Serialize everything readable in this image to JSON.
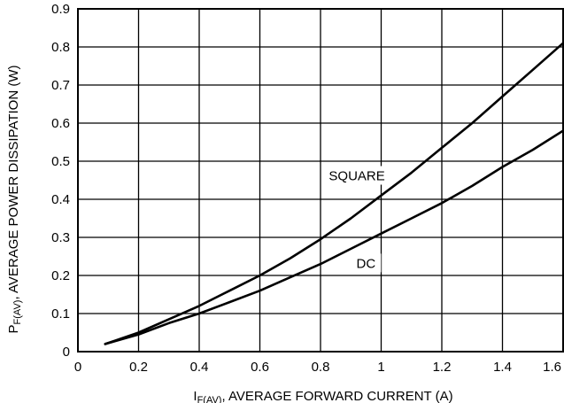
{
  "chart_data": {
    "type": "line",
    "title": "",
    "xlabel_main": "I",
    "xlabel_sub": "F(AV)",
    "xlabel_rest": ", AVERAGE FORWARD CURRENT (A)",
    "ylabel_main": "P",
    "ylabel_sub": "F(AV)",
    "ylabel_rest": ", AVERAGE POWER DISSIPATION (W)",
    "xlim": [
      0,
      1.6
    ],
    "ylim": [
      0,
      0.9
    ],
    "x_ticks": [
      0,
      0.2,
      0.4,
      0.6,
      0.8,
      1.0,
      1.2,
      1.4,
      1.6
    ],
    "x_tick_labels": [
      "0",
      "0.2",
      "0.4",
      "0.6",
      "0.8",
      "1",
      "1.2",
      "1.4",
      "1.6"
    ],
    "y_ticks": [
      0,
      0.1,
      0.2,
      0.3,
      0.4,
      0.5,
      0.6,
      0.7,
      0.8,
      0.9
    ],
    "y_tick_labels": [
      "0",
      "0.1",
      "0.2",
      "0.3",
      "0.4",
      "0.5",
      "0.6",
      "0.7",
      "0.8",
      "0.9"
    ],
    "grid": true,
    "series": [
      {
        "name": "SQUARE",
        "x": [
          0.09,
          0.2,
          0.3,
          0.4,
          0.5,
          0.6,
          0.7,
          0.8,
          0.9,
          1.0,
          1.1,
          1.2,
          1.3,
          1.4,
          1.5,
          1.6
        ],
        "y": [
          0.02,
          0.05,
          0.085,
          0.12,
          0.16,
          0.2,
          0.245,
          0.295,
          0.35,
          0.41,
          0.47,
          0.535,
          0.6,
          0.67,
          0.74,
          0.81
        ]
      },
      {
        "name": "DC",
        "x": [
          0.09,
          0.2,
          0.3,
          0.4,
          0.5,
          0.6,
          0.7,
          0.8,
          0.9,
          1.0,
          1.1,
          1.2,
          1.3,
          1.4,
          1.5,
          1.6
        ],
        "y": [
          0.02,
          0.045,
          0.075,
          0.1,
          0.13,
          0.16,
          0.195,
          0.23,
          0.27,
          0.31,
          0.35,
          0.39,
          0.435,
          0.485,
          0.53,
          0.58
        ]
      }
    ],
    "annotations": [
      {
        "text": "SQUARE",
        "x": 0.92,
        "y": 0.45
      },
      {
        "text": "DC",
        "x": 0.95,
        "y": 0.22
      }
    ]
  }
}
